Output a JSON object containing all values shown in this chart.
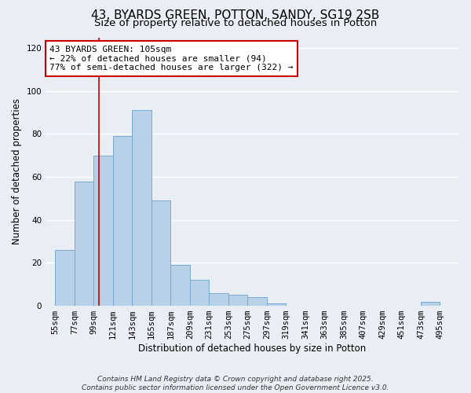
{
  "title": "43, BYARDS GREEN, POTTON, SANDY, SG19 2SB",
  "subtitle": "Size of property relative to detached houses in Potton",
  "xlabel": "Distribution of detached houses by size in Potton",
  "ylabel": "Number of detached properties",
  "bin_labels": [
    "55sqm",
    "77sqm",
    "99sqm",
    "121sqm",
    "143sqm",
    "165sqm",
    "187sqm",
    "209sqm",
    "231sqm",
    "253sqm",
    "275sqm",
    "297sqm",
    "319sqm",
    "341sqm",
    "363sqm",
    "385sqm",
    "407sqm",
    "429sqm",
    "451sqm",
    "473sqm",
    "495sqm"
  ],
  "bin_starts": [
    55,
    77,
    99,
    121,
    143,
    165,
    187,
    209,
    231,
    253,
    275,
    297,
    319,
    341,
    363,
    385,
    407,
    429,
    451,
    473,
    495
  ],
  "bar_heights": [
    26,
    58,
    70,
    79,
    91,
    49,
    19,
    12,
    6,
    5,
    4,
    1,
    0,
    0,
    0,
    0,
    0,
    0,
    0,
    2,
    0
  ],
  "bar_color": "#b8d0e8",
  "bar_edgecolor": "#7aaad0",
  "vline_x": 105,
  "vline_color": "#cc0000",
  "ylim": [
    0,
    125
  ],
  "yticks": [
    0,
    20,
    40,
    60,
    80,
    100,
    120
  ],
  "annotation_line1": "43 BYARDS GREEN: 105sqm",
  "annotation_line2": "← 22% of detached houses are smaller (94)",
  "annotation_line3": "77% of semi-detached houses are larger (322) →",
  "annotation_box_color": "#ffffff",
  "annotation_box_edgecolor": "#cc0000",
  "footer_line1": "Contains HM Land Registry data © Crown copyright and database right 2025.",
  "footer_line2": "Contains public sector information licensed under the Open Government Licence v3.0.",
  "bg_color": "#e8eef4",
  "grid_color": "#ffffff",
  "title_fontsize": 11,
  "subtitle_fontsize": 9.5,
  "label_fontsize": 8.5,
  "tick_fontsize": 7.5,
  "annotation_fontsize": 8,
  "footer_fontsize": 6.5
}
